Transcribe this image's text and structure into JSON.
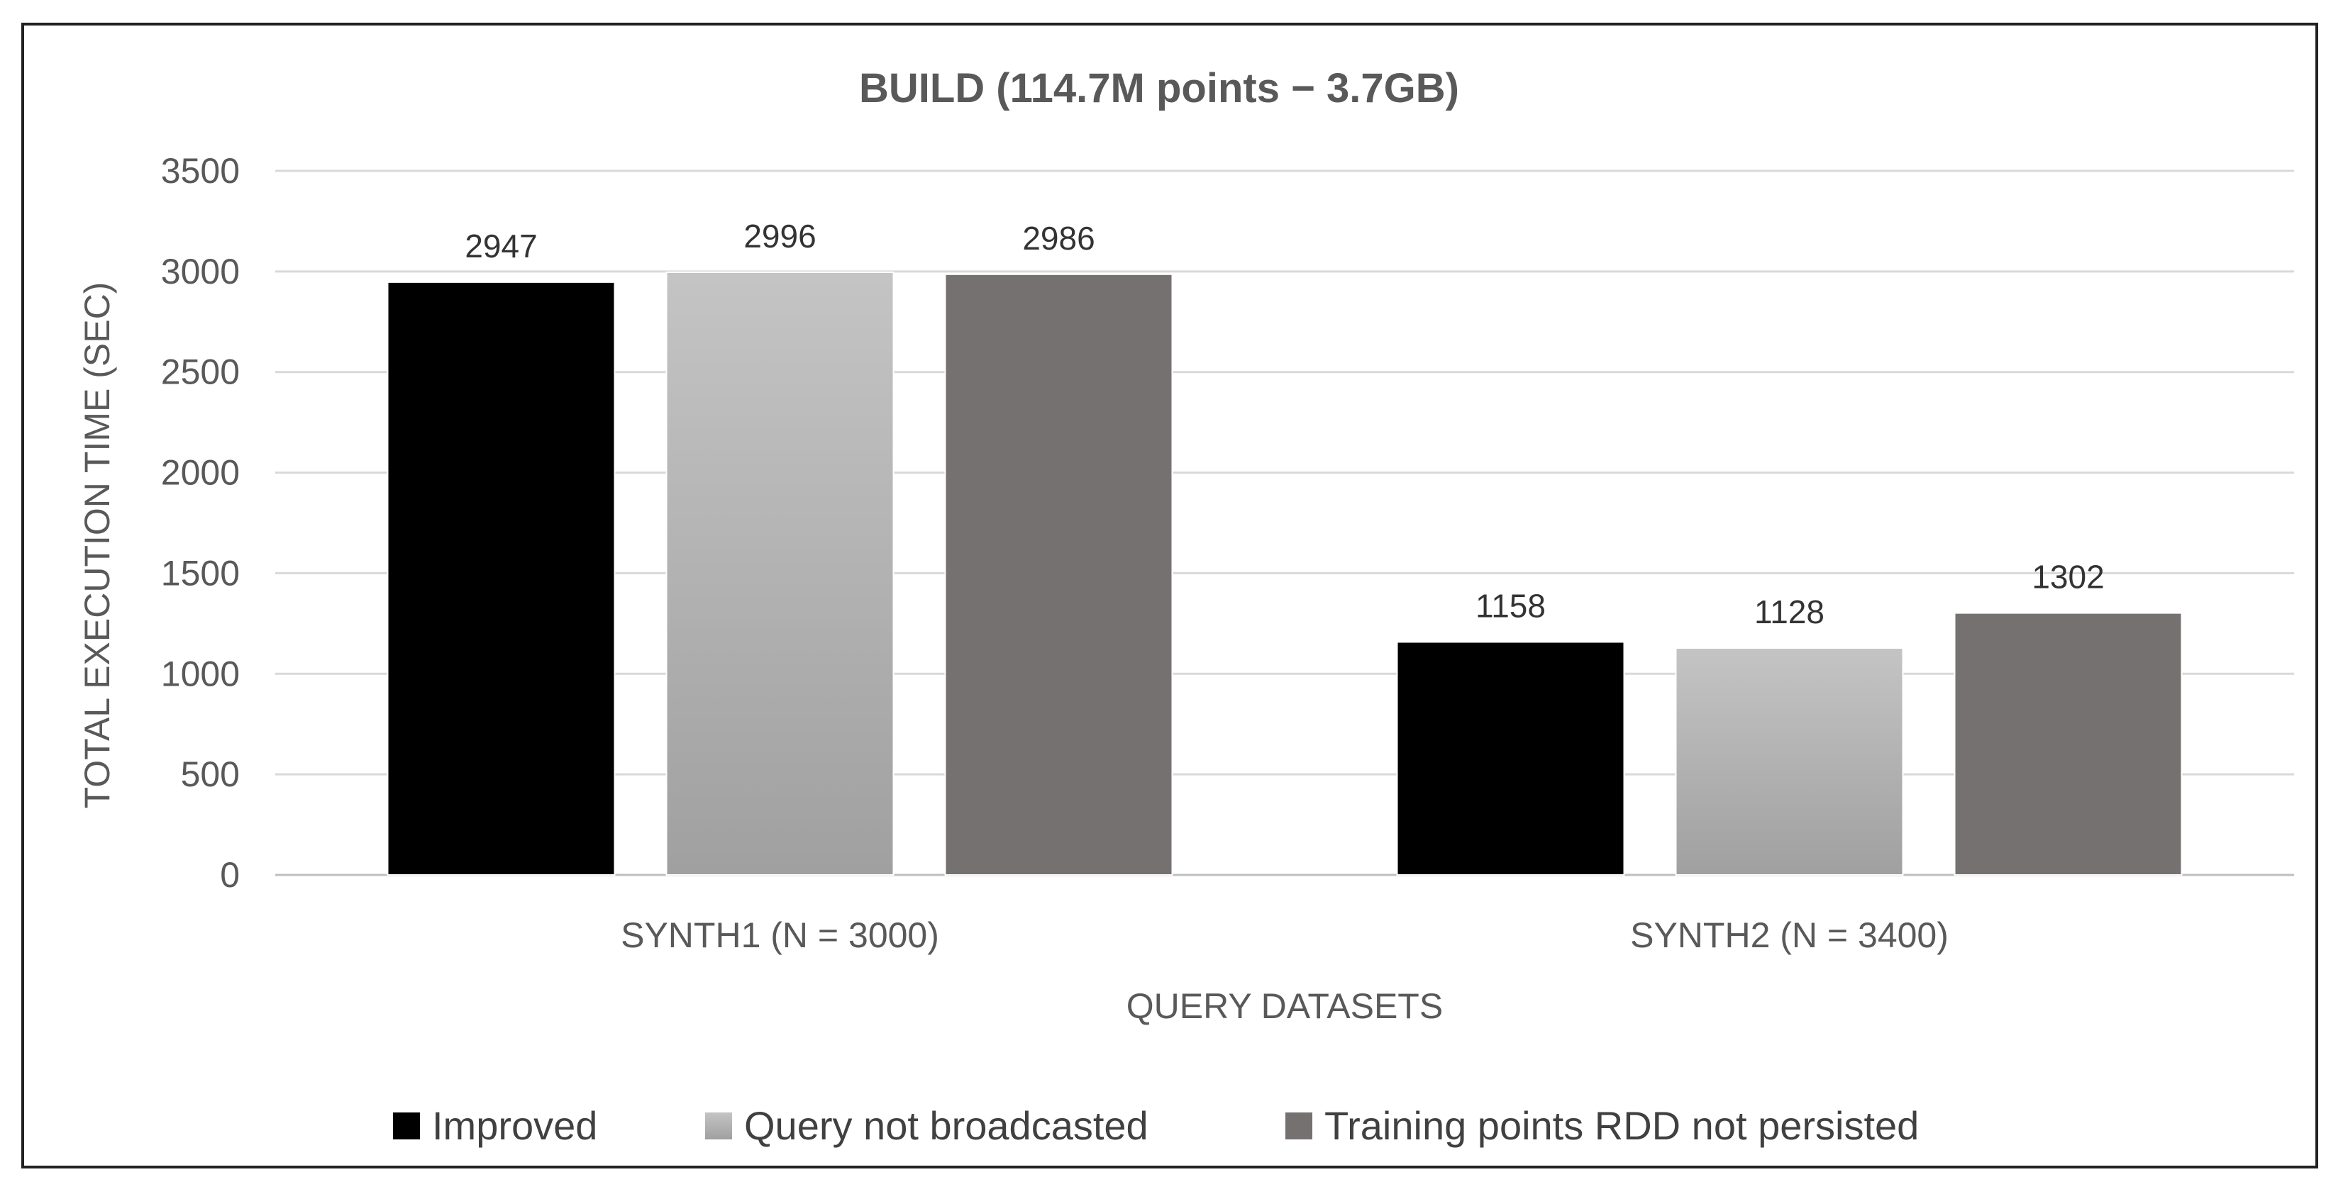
{
  "chart_data": {
    "type": "bar",
    "title": "BUILD (114.7M points − 3.7GB)",
    "xlabel": "QUERY DATASETS",
    "ylabel": "TOTAL EXECUTION TIME (SEC)",
    "ylim": [
      0,
      3500
    ],
    "yticks": [
      0,
      500,
      1000,
      1500,
      2000,
      2500,
      3000,
      3500
    ],
    "grid": true,
    "legend_position": "bottom",
    "categories": [
      "SYNTH1 (N = 3000)",
      "SYNTH2 (N = 3400)"
    ],
    "series": [
      {
        "name": "Improved",
        "values": [
          2947,
          1158
        ],
        "color": "#000000"
      },
      {
        "name": "Query not broadcasted",
        "values": [
          2996,
          1128
        ],
        "color": "#b3b3b3"
      },
      {
        "name": "Training points RDD not persisted",
        "values": [
          2986,
          1302
        ],
        "color": "#767171"
      }
    ]
  }
}
